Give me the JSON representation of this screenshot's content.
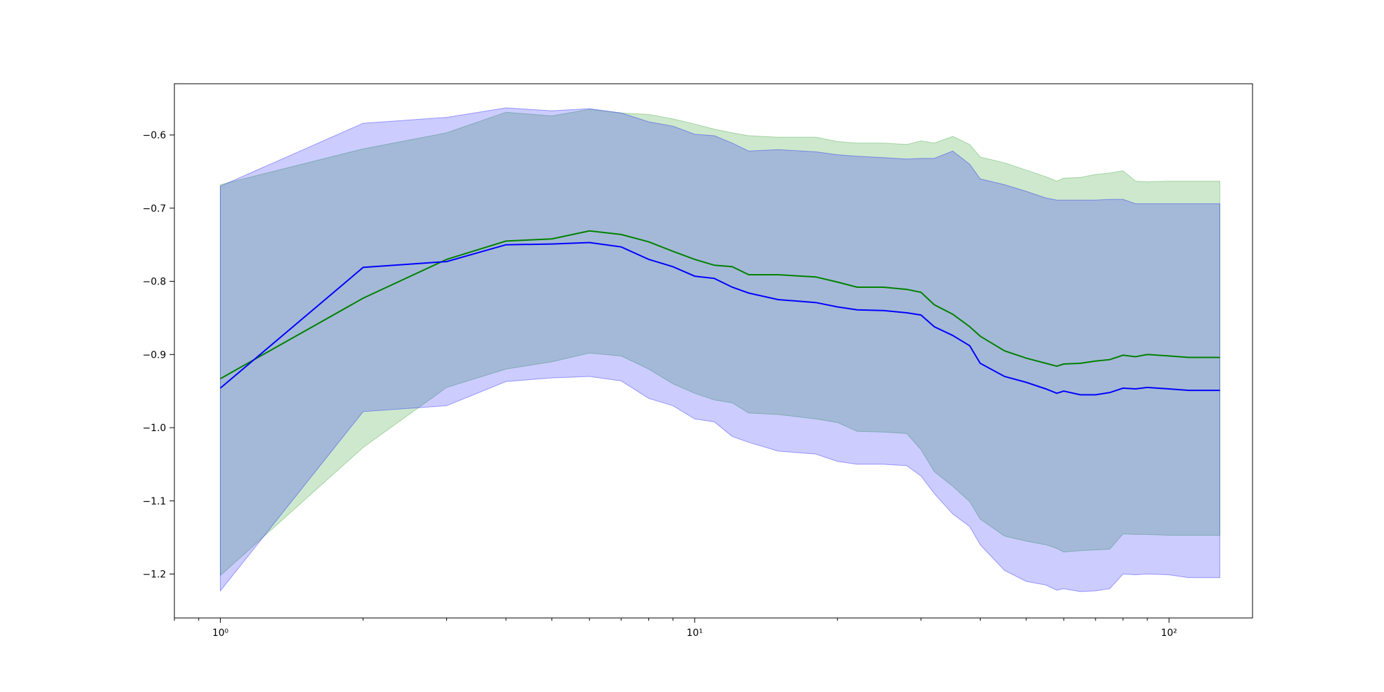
{
  "chart_data": {
    "type": "line",
    "title": "",
    "xlabel": "",
    "ylabel": "",
    "x_scale": "log",
    "xlim": [
      0.8,
      150
    ],
    "ylim": [
      -1.26,
      -0.53
    ],
    "grid": false,
    "legend": "none",
    "x_ticks": [
      {
        "value": 1,
        "label": "10⁰"
      },
      {
        "value": 10,
        "label": "10¹"
      },
      {
        "value": 100,
        "label": "10²"
      }
    ],
    "y_ticks": [
      {
        "value": -0.6,
        "label": "−0.6"
      },
      {
        "value": -0.7,
        "label": "−0.7"
      },
      {
        "value": -0.8,
        "label": "−0.8"
      },
      {
        "value": -0.9,
        "label": "−0.9"
      },
      {
        "value": -1.0,
        "label": "−1.0"
      },
      {
        "value": -1.1,
        "label": "−1.1"
      },
      {
        "value": -1.2,
        "label": "−1.2"
      }
    ],
    "series": [
      {
        "color": "#008000",
        "band_color": "#2ca02c",
        "band_opacity": 0.24,
        "x": [
          1,
          2,
          3,
          4,
          5,
          6,
          7,
          8,
          9,
          10,
          11,
          12,
          13,
          15,
          18,
          20,
          22,
          25,
          28,
          30,
          32,
          35,
          38,
          40,
          45,
          50,
          55,
          58,
          60,
          65,
          70,
          75,
          80,
          85,
          90,
          100,
          110,
          128
        ],
        "mean": [
          -0.933,
          -0.823,
          -0.77,
          -0.745,
          -0.742,
          -0.731,
          -0.736,
          -0.746,
          -0.759,
          -0.77,
          -0.778,
          -0.78,
          -0.791,
          -0.791,
          -0.794,
          -0.801,
          -0.808,
          -0.808,
          -0.811,
          -0.815,
          -0.832,
          -0.845,
          -0.862,
          -0.875,
          -0.895,
          -0.905,
          -0.912,
          -0.916,
          -0.913,
          -0.912,
          -0.909,
          -0.907,
          -0.901,
          -0.903,
          -0.9,
          -0.902,
          -0.904,
          -0.904
        ],
        "upper": [
          -0.668,
          -0.619,
          -0.597,
          -0.569,
          -0.574,
          -0.565,
          -0.57,
          -0.572,
          -0.578,
          -0.585,
          -0.592,
          -0.597,
          -0.601,
          -0.603,
          -0.603,
          -0.609,
          -0.611,
          -0.611,
          -0.613,
          -0.608,
          -0.611,
          -0.602,
          -0.613,
          -0.63,
          -0.638,
          -0.648,
          -0.657,
          -0.663,
          -0.659,
          -0.658,
          -0.654,
          -0.652,
          -0.649,
          -0.663,
          -0.664,
          -0.663,
          -0.663,
          -0.663
        ],
        "lower": [
          -1.202,
          -1.027,
          -0.945,
          -0.92,
          -0.91,
          -0.898,
          -0.902,
          -0.92,
          -0.94,
          -0.953,
          -0.962,
          -0.966,
          -0.98,
          -0.982,
          -0.988,
          -0.993,
          -1.005,
          -1.006,
          -1.008,
          -1.03,
          -1.06,
          -1.08,
          -1.101,
          -1.125,
          -1.148,
          -1.155,
          -1.16,
          -1.165,
          -1.17,
          -1.168,
          -1.167,
          -1.166,
          -1.145,
          -1.146,
          -1.146,
          -1.147,
          -1.147,
          -1.147
        ]
      },
      {
        "color": "#0000ff",
        "band_color": "#0000ff",
        "band_opacity": 0.2,
        "x": [
          1,
          2,
          3,
          4,
          5,
          6,
          7,
          8,
          9,
          10,
          11,
          12,
          13,
          15,
          18,
          20,
          22,
          25,
          28,
          30,
          32,
          35,
          38,
          40,
          45,
          50,
          55,
          58,
          60,
          65,
          70,
          75,
          80,
          85,
          90,
          100,
          110,
          128
        ],
        "mean": [
          -0.946,
          -0.781,
          -0.773,
          -0.75,
          -0.749,
          -0.747,
          -0.753,
          -0.77,
          -0.78,
          -0.793,
          -0.796,
          -0.808,
          -0.816,
          -0.825,
          -0.829,
          -0.835,
          -0.839,
          -0.84,
          -0.843,
          -0.846,
          -0.862,
          -0.874,
          -0.888,
          -0.912,
          -0.93,
          -0.938,
          -0.947,
          -0.953,
          -0.95,
          -0.955,
          -0.955,
          -0.952,
          -0.946,
          -0.947,
          -0.945,
          -0.947,
          -0.949,
          -0.949
        ],
        "upper": [
          -0.67,
          -0.584,
          -0.576,
          -0.563,
          -0.567,
          -0.564,
          -0.57,
          -0.582,
          -0.588,
          -0.599,
          -0.601,
          -0.611,
          -0.622,
          -0.62,
          -0.623,
          -0.627,
          -0.629,
          -0.631,
          -0.633,
          -0.632,
          -0.632,
          -0.622,
          -0.64,
          -0.66,
          -0.668,
          -0.677,
          -0.686,
          -0.689,
          -0.689,
          -0.689,
          -0.689,
          -0.688,
          -0.688,
          -0.694,
          -0.694,
          -0.694,
          -0.694,
          -0.694
        ],
        "lower": [
          -1.223,
          -0.978,
          -0.97,
          -0.937,
          -0.932,
          -0.93,
          -0.936,
          -0.96,
          -0.97,
          -0.988,
          -0.992,
          -1.012,
          -1.02,
          -1.032,
          -1.036,
          -1.046,
          -1.05,
          -1.05,
          -1.052,
          -1.066,
          -1.09,
          -1.118,
          -1.135,
          -1.16,
          -1.195,
          -1.21,
          -1.215,
          -1.222,
          -1.22,
          -1.224,
          -1.223,
          -1.22,
          -1.2,
          -1.201,
          -1.2,
          -1.201,
          -1.205,
          -1.205
        ]
      }
    ]
  }
}
